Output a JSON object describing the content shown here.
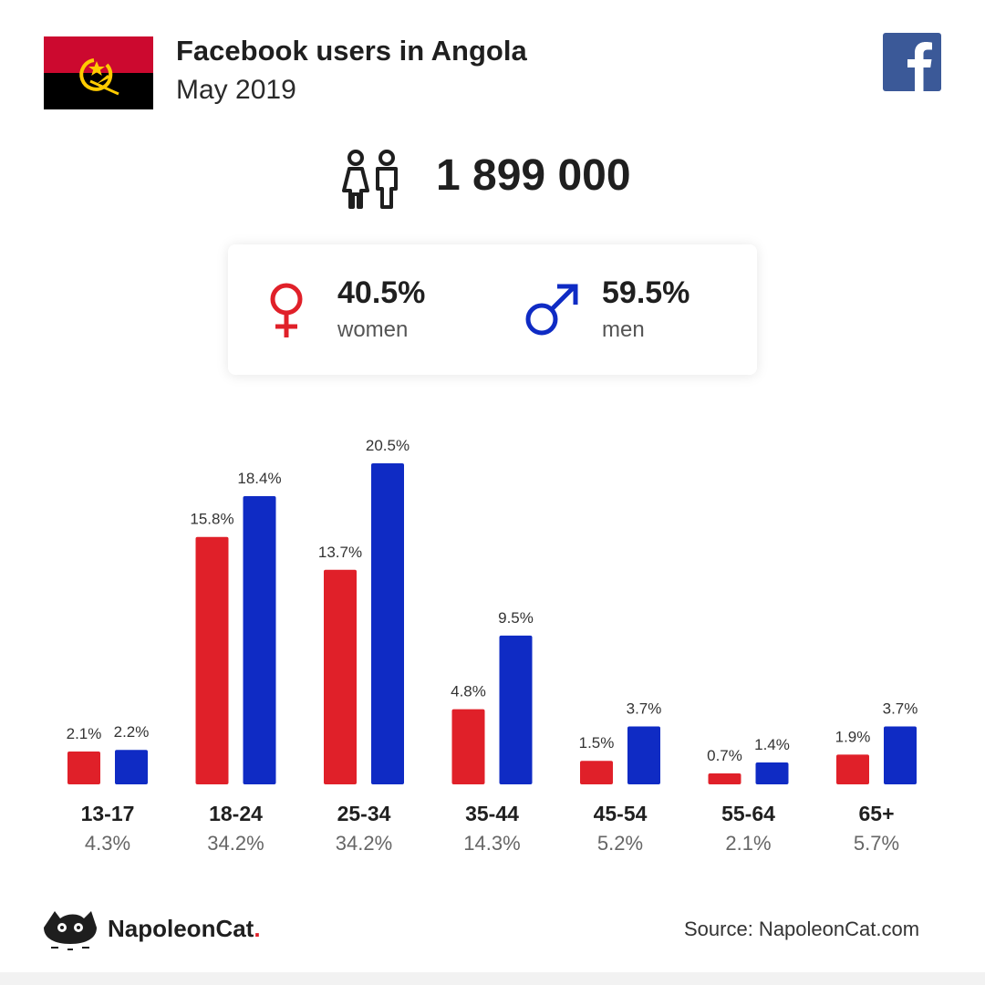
{
  "header": {
    "title": "Facebook users in Angola",
    "subtitle": "May 2019"
  },
  "total_users": "1 899 000",
  "gender": {
    "women": {
      "percent": "40.5%",
      "label": "women"
    },
    "men": {
      "percent": "59.5%",
      "label": "men"
    }
  },
  "colors": {
    "women": "#e02029",
    "men": "#0f2bc4",
    "facebook": "#3b5998",
    "flag_red": "#cc092f",
    "flag_black": "#000000",
    "flag_emblem": "#ffcb00"
  },
  "icons": {
    "flag": "angola-flag-icon",
    "facebook": "facebook-icon",
    "people": "people-icon",
    "female": "female-icon",
    "male": "male-icon",
    "brand": "napoleoncat-logo-icon"
  },
  "chart_data": {
    "type": "bar",
    "categories": [
      "13-17",
      "18-24",
      "25-34",
      "35-44",
      "45-54",
      "55-64",
      "65+"
    ],
    "series": [
      {
        "name": "women",
        "values": [
          2.1,
          15.8,
          13.7,
          4.8,
          1.5,
          0.7,
          1.9
        ]
      },
      {
        "name": "men",
        "values": [
          2.2,
          18.4,
          20.5,
          9.5,
          3.7,
          1.4,
          3.7
        ]
      }
    ],
    "totals": [
      "4.3%",
      "34.2%",
      "34.2%",
      "14.3%",
      "5.2%",
      "2.1%",
      "5.7%"
    ],
    "value_suffix": "%",
    "ylim": [
      0,
      20.5
    ]
  },
  "footer": {
    "brand": "NapoleonCat",
    "brand_dot": ".",
    "source": "Source: NapoleonCat.com"
  }
}
